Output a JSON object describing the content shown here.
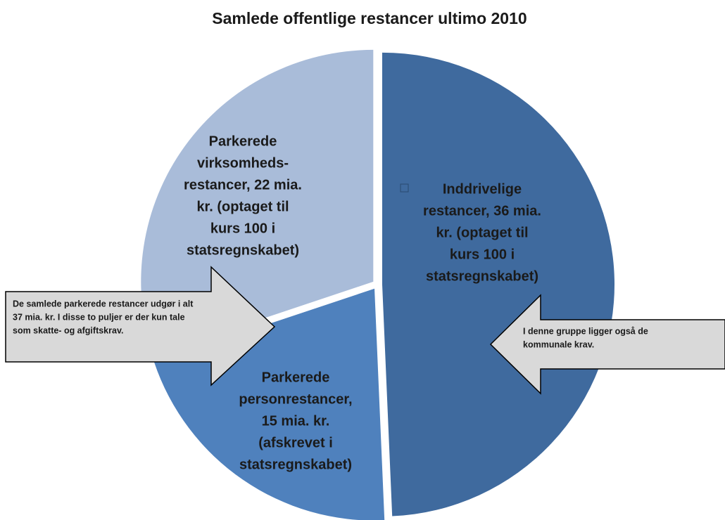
{
  "chart_data": {
    "type": "pie",
    "title": "Samlede offentlige restancer ultimo 2010",
    "categories": [
      [
        "Inddrivelige",
        "restancer, 36 mia.",
        "kr. (optaget til",
        "kurs 100 i",
        "statsregnskabet)"
      ],
      [
        "Parkerede",
        "personrestancer,",
        "15 mia. kr.",
        "(afskrevet i",
        "statsregnskabet)"
      ],
      [
        "Parkerede",
        "virksomheds-",
        "restancer, 22 mia.",
        "kr. (optaget til",
        "kurs 100 i",
        "statsregnskabet)"
      ]
    ],
    "values": [
      36,
      15,
      22
    ],
    "colors": [
      "#3f6a9e",
      "#4f81bd",
      "#a9bcd9"
    ],
    "annotations": [
      [
        "De samlede parkerede restancer udgør i alt",
        "37 mia. kr. I disse to puljer er der kun tale",
        "som skatte- og afgiftskrav."
      ],
      [
        "I denne gruppe ligger  også de",
        "kommunale krav."
      ]
    ]
  }
}
